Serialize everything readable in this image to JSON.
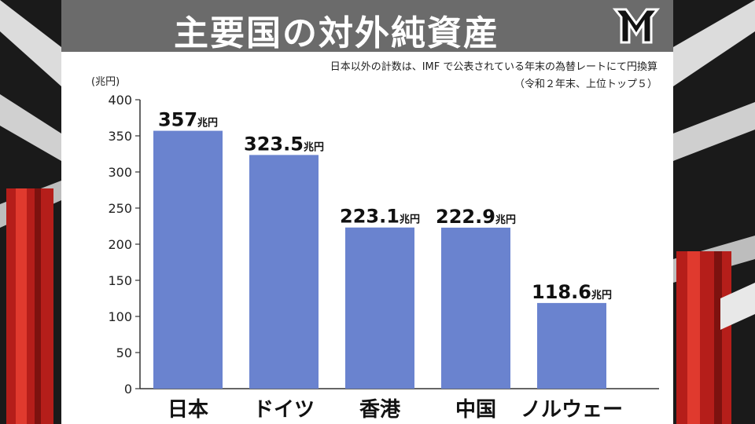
{
  "title": "主要国の対外純資産",
  "notes": {
    "line1": "日本以外の計数は、IMF で公表されている年末の為替レートにて円換算",
    "line2": "（令和２年末、上位トップ５）"
  },
  "colors": {
    "bar": "#6a83cf",
    "title_bar": "#6b6b6b",
    "frame_red": "#c0201c"
  },
  "logo_icon": "mr-logo-icon",
  "chart_data": {
    "type": "bar",
    "title": "主要国の対外純資産",
    "categories": [
      "日本",
      "ドイツ",
      "香港",
      "中国",
      "ノルウェー"
    ],
    "values": [
      357,
      323.5,
      223.1,
      222.9,
      118.6
    ],
    "value_labels": [
      "357",
      "323.5",
      "223.1",
      "222.9",
      "118.6"
    ],
    "value_unit": "兆円",
    "ylabel": "(兆円)",
    "ylim": [
      0,
      400
    ],
    "yticks": [
      "0",
      "50",
      "100",
      "150",
      "200",
      "250",
      "300",
      "350",
      "400"
    ],
    "grid": false
  }
}
